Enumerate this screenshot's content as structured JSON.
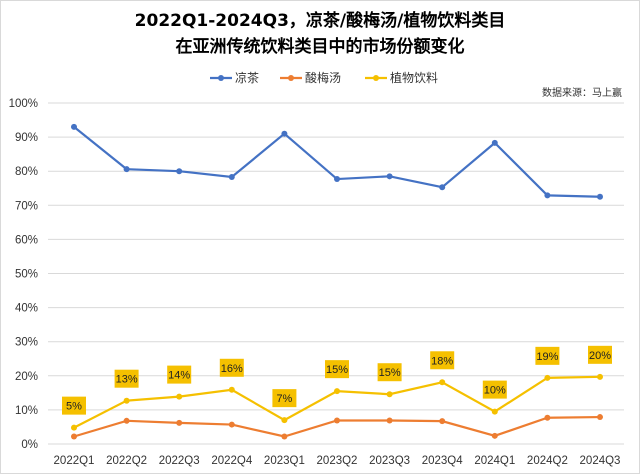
{
  "chart_data": {
    "type": "line",
    "title_lines": [
      "2022Q1-2024Q3，凉茶/酸梅汤/植物饮料类目",
      "在亚洲传统饮料类目中的市场份额变化"
    ],
    "source_note": "数据来源：马上赢",
    "categories": [
      "2022Q1",
      "2022Q2",
      "2022Q3",
      "2022Q4",
      "2023Q1",
      "2023Q2",
      "2023Q3",
      "2023Q4",
      "2024Q1",
      "2024Q2",
      "2024Q3"
    ],
    "y_ticks": [
      "0%",
      "10%",
      "20%",
      "30%",
      "40%",
      "50%",
      "60%",
      "70%",
      "80%",
      "90%",
      "100%"
    ],
    "ylim": [
      0,
      100
    ],
    "grid": true,
    "legend_position": "top",
    "series": [
      {
        "name": "凉茶",
        "color": "#4472c4",
        "values": [
          93.0,
          80.6,
          80.0,
          78.3,
          91.0,
          77.7,
          78.5,
          75.3,
          88.3,
          72.9,
          72.5
        ]
      },
      {
        "name": "酸梅汤",
        "color": "#ed7d31",
        "values": [
          2.2,
          6.8,
          6.2,
          5.7,
          2.2,
          6.9,
          6.9,
          6.7,
          2.4,
          7.7,
          7.9
        ]
      },
      {
        "name": "植物饮料",
        "color": "#f5c000",
        "values": [
          4.8,
          12.7,
          13.9,
          15.9,
          7.0,
          15.5,
          14.6,
          18.1,
          9.5,
          19.4,
          19.7
        ],
        "data_labels": [
          "5%",
          "13%",
          "14%",
          "16%",
          "7%",
          "15%",
          "15%",
          "18%",
          "10%",
          "19%",
          "20%"
        ]
      }
    ]
  }
}
